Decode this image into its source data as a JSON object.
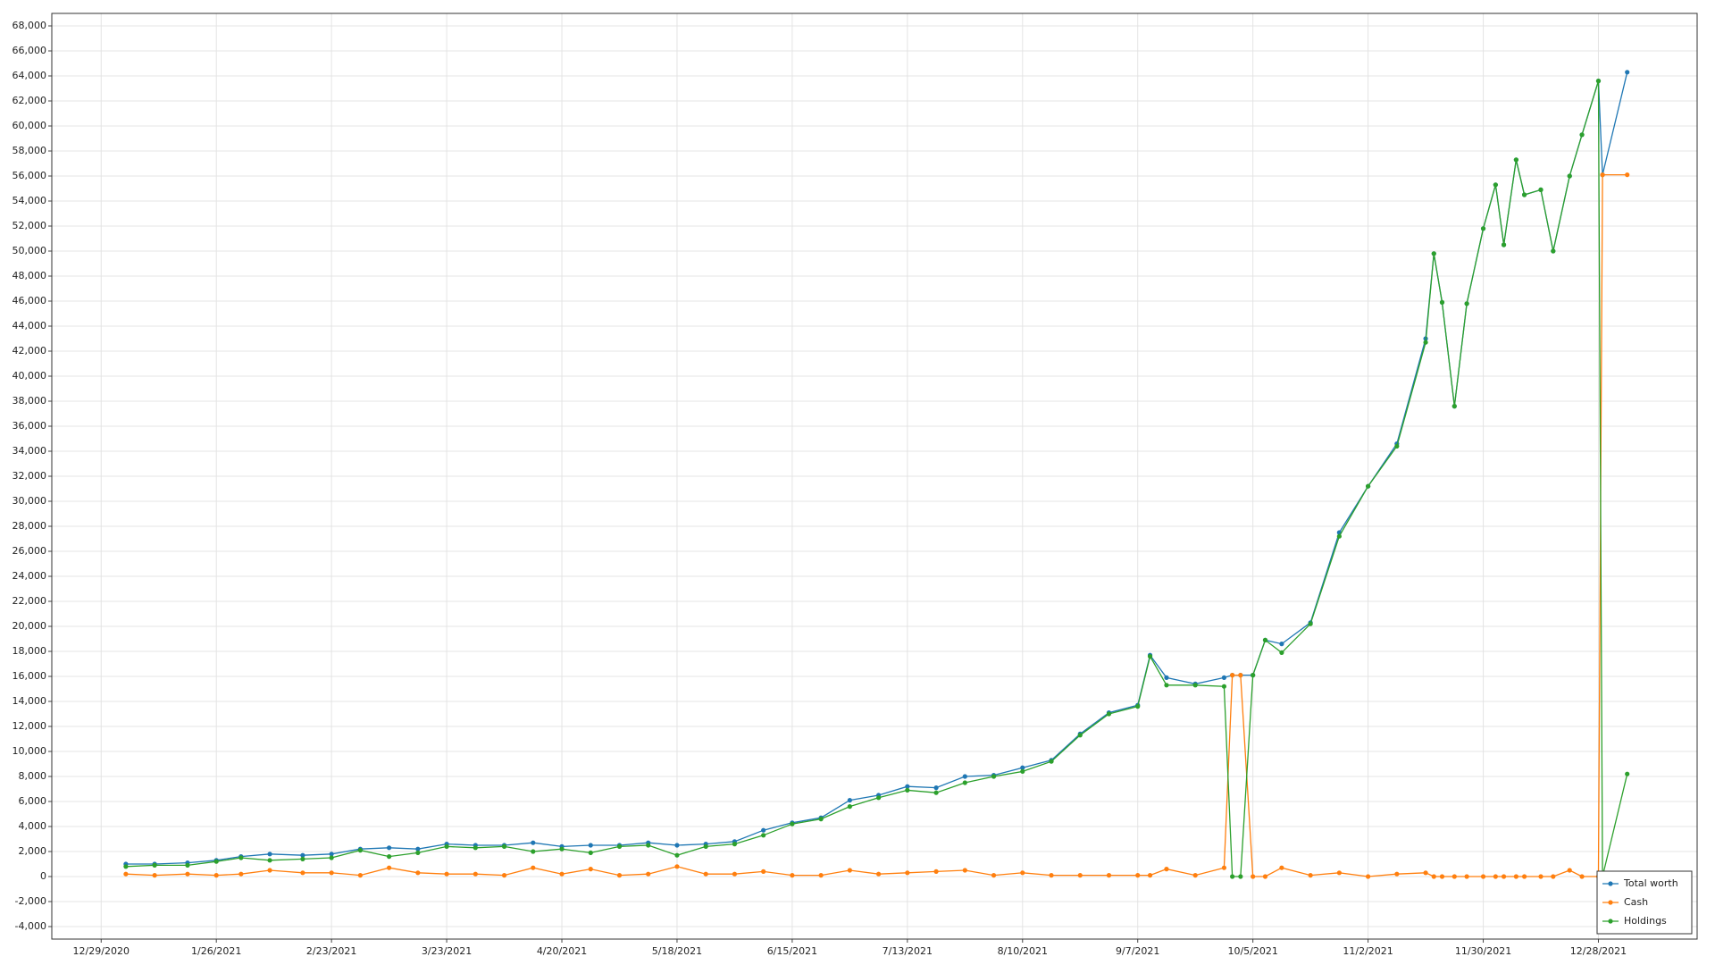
{
  "chart_data": {
    "type": "line",
    "grid": true,
    "legend": "lower right",
    "x": [
      "1/4/2021",
      "1/11/2021",
      "1/19/2021",
      "1/26/2021",
      "2/1/2021",
      "2/8/2021",
      "2/16/2021",
      "2/23/2021",
      "3/2/2021",
      "3/9/2021",
      "3/16/2021",
      "3/23/2021",
      "3/30/2021",
      "4/6/2021",
      "4/13/2021",
      "4/20/2021",
      "4/27/2021",
      "5/4/2021",
      "5/11/2021",
      "5/18/2021",
      "5/25/2021",
      "6/1/2021",
      "6/8/2021",
      "6/15/2021",
      "6/22/2021",
      "6/29/2021",
      "7/6/2021",
      "7/13/2021",
      "7/20/2021",
      "7/27/2021",
      "8/3/2021",
      "8/10/2021",
      "8/17/2021",
      "8/24/2021",
      "8/31/2021",
      "9/7/2021",
      "9/10/2021",
      "9/14/2021",
      "9/21/2021",
      "9/28/2021",
      "9/30/2021",
      "10/2/2021",
      "10/5/2021",
      "10/8/2021",
      "10/12/2021",
      "10/19/2021",
      "10/26/2021",
      "11/2/2021",
      "11/9/2021",
      "11/16/2021",
      "11/18/2021",
      "11/20/2021",
      "11/23/2021",
      "11/26/2021",
      "11/30/2021",
      "12/3/2021",
      "12/5/2021",
      "12/8/2021",
      "12/10/2021",
      "12/14/2021",
      "12/17/2021",
      "12/21/2021",
      "12/24/2021",
      "12/28/2021",
      "12/29/2021",
      "1/4/2022"
    ],
    "series": [
      {
        "name": "Total worth",
        "color": "#1f77b4",
        "values": [
          1000,
          1000,
          1100,
          1300,
          1600,
          1800,
          1700,
          1800,
          2200,
          2300,
          2200,
          2600,
          2500,
          2500,
          2700,
          2400,
          2500,
          2500,
          2700,
          2500,
          2600,
          2800,
          3700,
          4300,
          4700,
          6100,
          6500,
          7200,
          7100,
          8000,
          8100,
          8700,
          9300,
          11400,
          13100,
          13700,
          17700,
          15900,
          15400,
          15900,
          16100,
          16100,
          16100,
          18900,
          18600,
          20300,
          27500,
          31200,
          34600,
          43000,
          49800,
          45900,
          37600,
          45800,
          51800,
          55300,
          50500,
          57300,
          54500,
          54900,
          50000,
          56000,
          59300,
          63600,
          56100,
          64300
        ]
      },
      {
        "name": "Cash",
        "color": "#ff7f0e",
        "values": [
          200,
          100,
          200,
          100,
          200,
          500,
          300,
          300,
          100,
          700,
          300,
          200,
          200,
          100,
          700,
          200,
          600,
          100,
          200,
          800,
          200,
          200,
          400,
          100,
          100,
          500,
          200,
          300,
          400,
          500,
          100,
          300,
          100,
          100,
          100,
          100,
          100,
          600,
          100,
          700,
          16100,
          16100,
          0,
          0,
          700,
          100,
          300,
          0,
          200,
          300,
          0,
          0,
          0,
          0,
          0,
          0,
          0,
          0,
          0,
          0,
          0,
          500,
          0,
          0,
          56100,
          56100
        ]
      },
      {
        "name": "Holdings",
        "color": "#2ca02c",
        "values": [
          800,
          900,
          900,
          1200,
          1500,
          1300,
          1400,
          1500,
          2100,
          1600,
          1900,
          2400,
          2300,
          2400,
          2000,
          2200,
          1900,
          2400,
          2500,
          1700,
          2400,
          2600,
          3300,
          4200,
          4600,
          5600,
          6300,
          6900,
          6700,
          7500,
          8000,
          8400,
          9200,
          11300,
          13000,
          13600,
          17600,
          15300,
          15300,
          15200,
          0,
          0,
          16100,
          18900,
          17900,
          20200,
          27200,
          31200,
          34400,
          42700,
          49800,
          45900,
          37600,
          45800,
          51800,
          55300,
          50500,
          57300,
          54500,
          54900,
          50000,
          56000,
          59300,
          63600,
          0,
          8200
        ]
      }
    ],
    "xlim": [
      "12/17/2020",
      "1/21/2022"
    ],
    "xticks": [
      "12/29/2020",
      "1/26/2021",
      "2/23/2021",
      "3/23/2021",
      "4/20/2021",
      "5/18/2021",
      "6/15/2021",
      "7/13/2021",
      "8/10/2021",
      "9/7/2021",
      "10/5/2021",
      "11/2/2021",
      "11/30/2021",
      "12/28/2021"
    ],
    "ylim": [
      -5000,
      69000
    ],
    "yticks": [
      {
        "value": -4000,
        "label": "-4,000"
      },
      {
        "value": -2000,
        "label": "-2,000"
      },
      0,
      {
        "value": 2000,
        "label": "2,000"
      },
      {
        "value": 4000,
        "label": "4,000"
      },
      {
        "value": 6000,
        "label": "6,000"
      },
      {
        "value": 8000,
        "label": "8,000"
      },
      {
        "value": 10000,
        "label": "10,000"
      },
      {
        "value": 12000,
        "label": "12,000"
      },
      {
        "value": 14000,
        "label": "14,000"
      },
      {
        "value": 16000,
        "label": "16,000"
      },
      {
        "value": 18000,
        "label": "18,000"
      },
      {
        "value": 20000,
        "label": "20,000"
      },
      {
        "value": 22000,
        "label": "22,000"
      },
      {
        "value": 24000,
        "label": "24,000"
      },
      {
        "value": 26000,
        "label": "26,000"
      },
      {
        "value": 28000,
        "label": "28,000"
      },
      {
        "value": 30000,
        "label": "30,000"
      },
      {
        "value": 32000,
        "label": "32,000"
      },
      {
        "value": 34000,
        "label": "34,000"
      },
      {
        "value": 36000,
        "label": "36,000"
      },
      {
        "value": 38000,
        "label": "38,000"
      },
      {
        "value": 40000,
        "label": "40,000"
      },
      {
        "value": 42000,
        "label": "42,000"
      },
      {
        "value": 44000,
        "label": "44,000"
      },
      {
        "value": 46000,
        "label": "46,000"
      },
      {
        "value": 48000,
        "label": "48,000"
      },
      {
        "value": 50000,
        "label": "50,000"
      },
      {
        "value": 52000,
        "label": "52,000"
      },
      {
        "value": 54000,
        "label": "54,000"
      },
      {
        "value": 56000,
        "label": "56,000"
      },
      {
        "value": 58000,
        "label": "58,000"
      },
      {
        "value": 60000,
        "label": "60,000"
      },
      {
        "value": 62000,
        "label": "62,000"
      },
      {
        "value": 64000,
        "label": "64,000"
      },
      {
        "value": 66000,
        "label": "66,000"
      },
      {
        "value": 68000,
        "label": "68,000"
      }
    ]
  }
}
